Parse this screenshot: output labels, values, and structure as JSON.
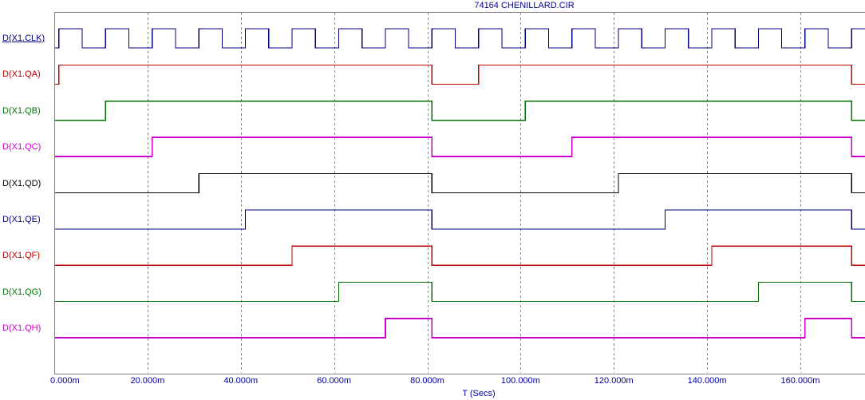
{
  "title": "74164 CHENILLARD.CIR",
  "colors": {
    "background": "#FFFFFF",
    "text_blue": "#0000A0",
    "plot_border": "#808080",
    "gridline": "#8A8A8A",
    "navy": "#000080",
    "red": "#C00000",
    "green": "#007000",
    "magenta": "#CC00CC",
    "black": "#000000"
  },
  "x_axis": {
    "label": "T (Secs)",
    "ticks": [
      "0.000m",
      "20.000m",
      "40.000m",
      "60.000m",
      "80.000m",
      "100.000m",
      "120.000m",
      "140.000m",
      "160.000m"
    ],
    "tick_times_ms": [
      0,
      20,
      40,
      60,
      80,
      100,
      120,
      140,
      160
    ]
  },
  "chart_data": {
    "type": "digital-timing-diagram",
    "title": "74164 CHENILLARD.CIR",
    "xlabel": "T (Secs)",
    "x_range_ms": [
      0,
      173.8
    ],
    "gridlines_every_ms": 20,
    "grid_on": true,
    "clock_period_ms": 10,
    "logic_levels": [
      0,
      1
    ],
    "signals": [
      {
        "name": "D(X1.CLK)",
        "color": "#000080",
        "underlined": true,
        "initial": 0,
        "toggles_ms": [
          1,
          6,
          11,
          16,
          21,
          26,
          31,
          36,
          41,
          46,
          51,
          56,
          61,
          66,
          71,
          76,
          81,
          86,
          91,
          96,
          101,
          106,
          111,
          116,
          121,
          126,
          131,
          136,
          141,
          146,
          151,
          156,
          161,
          166,
          171
        ]
      },
      {
        "name": "D(X1.QA)",
        "color": "#C00000",
        "underlined": false,
        "initial": 0,
        "toggles_ms": [
          1,
          81,
          91,
          171
        ]
      },
      {
        "name": "D(X1.QB)",
        "color": "#007000",
        "underlined": false,
        "initial": 0,
        "toggles_ms": [
          11,
          81,
          101,
          171
        ]
      },
      {
        "name": "D(X1.QC)",
        "color": "#CC00CC",
        "underlined": false,
        "initial": 0,
        "toggles_ms": [
          21,
          81,
          111,
          171
        ]
      },
      {
        "name": "D(X1.QD)",
        "color": "#000000",
        "underlined": false,
        "initial": 0,
        "toggles_ms": [
          31,
          81,
          121,
          171
        ]
      },
      {
        "name": "D(X1.QE)",
        "color": "#000080",
        "underlined": false,
        "initial": 0,
        "toggles_ms": [
          41,
          81,
          131,
          171
        ]
      },
      {
        "name": "D(X1.QF)",
        "color": "#C00000",
        "underlined": false,
        "initial": 0,
        "toggles_ms": [
          51,
          81,
          141,
          171
        ]
      },
      {
        "name": "D(X1.QG)",
        "color": "#007000",
        "underlined": false,
        "initial": 0,
        "toggles_ms": [
          61,
          81,
          151,
          171
        ]
      },
      {
        "name": "D(X1.QH)",
        "color": "#CC00CC",
        "underlined": false,
        "initial": 0,
        "toggles_ms": [
          71,
          81,
          161,
          171
        ]
      }
    ]
  }
}
